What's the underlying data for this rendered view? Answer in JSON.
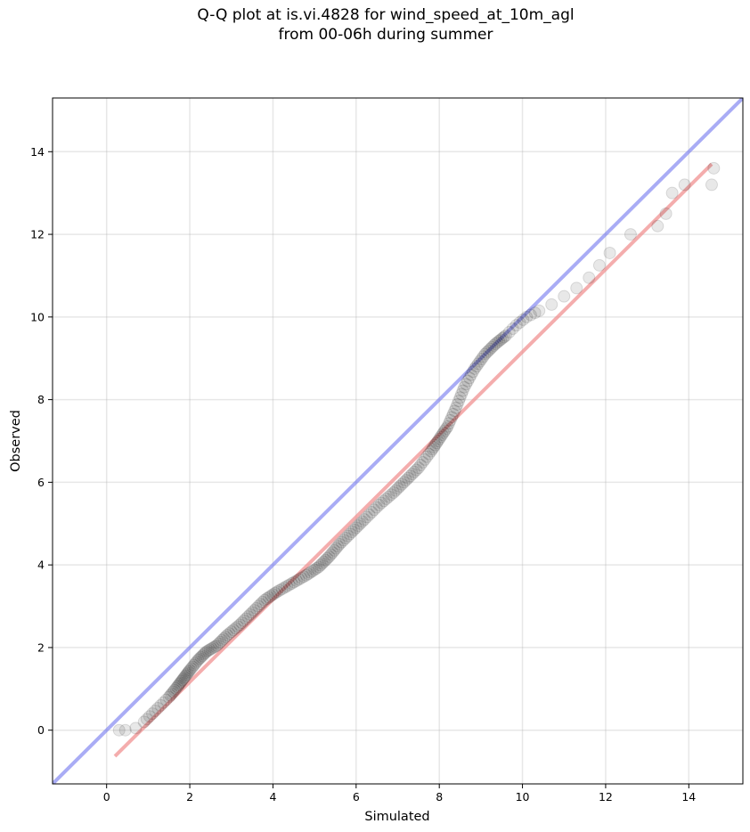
{
  "chart_data": {
    "type": "scatter",
    "title": "Q-Q plot at is.vi.4828 for wind_speed_at_10m_agl",
    "subtitle": "from 00-06h during summer",
    "xlabel": "Simulated",
    "ylabel": "Observed",
    "xlim": [
      -1.3,
      15.3
    ],
    "ylim": [
      -1.3,
      15.3
    ],
    "x_ticks": [
      0,
      2,
      4,
      6,
      8,
      10,
      12,
      14
    ],
    "y_ticks": [
      0,
      2,
      4,
      6,
      8,
      10,
      12,
      14
    ],
    "grid": true,
    "identity_line": {
      "from": [
        -1.3,
        -1.3
      ],
      "to": [
        15.3,
        15.3
      ],
      "color": "#7b7fef"
    },
    "fit_line": {
      "from": [
        0.2,
        -0.63
      ],
      "to": [
        14.55,
        13.7
      ],
      "color": "#f08a8a"
    },
    "point_color": "#000000",
    "quantiles": {
      "x": [
        0.3,
        0.45,
        0.7,
        0.9,
        1.1,
        1.3,
        1.5,
        1.7,
        1.85,
        2.0,
        2.2,
        2.4,
        2.65,
        2.9,
        3.2,
        3.5,
        3.8,
        4.1,
        4.45,
        4.8,
        5.1,
        5.35,
        5.6,
        5.9,
        6.2,
        6.55,
        6.9,
        7.2,
        7.5,
        7.8,
        8.0,
        8.2,
        8.4,
        8.6,
        8.85,
        9.1,
        9.35,
        9.6,
        9.85,
        10.1,
        10.4,
        10.7,
        11.0,
        11.3,
        11.6,
        11.85,
        12.1,
        12.6,
        13.25,
        13.45,
        13.6,
        13.9,
        14.55,
        14.6
      ],
      "y": [
        0.0,
        0.0,
        0.05,
        0.2,
        0.4,
        0.6,
        0.8,
        1.05,
        1.25,
        1.45,
        1.7,
        1.9,
        2.05,
        2.3,
        2.55,
        2.85,
        3.15,
        3.35,
        3.55,
        3.75,
        3.95,
        4.2,
        4.5,
        4.8,
        5.1,
        5.45,
        5.75,
        6.05,
        6.35,
        6.75,
        7.05,
        7.35,
        7.8,
        8.3,
        8.75,
        9.1,
        9.35,
        9.55,
        9.8,
        10.0,
        10.15,
        10.3,
        10.5,
        10.7,
        10.95,
        11.25,
        11.55,
        12.0,
        12.2,
        12.5,
        13.0,
        13.2,
        13.2,
        13.6
      ]
    }
  }
}
